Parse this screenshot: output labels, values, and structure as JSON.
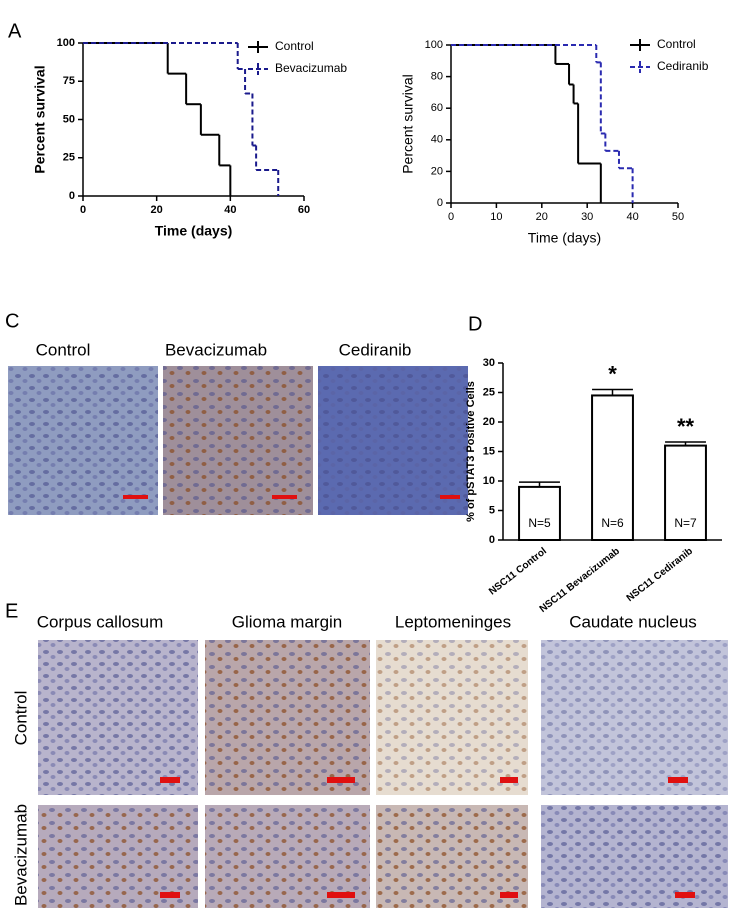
{
  "panel_labels": {
    "a": "A",
    "c": "C",
    "d": "D",
    "e": "E"
  },
  "chart_data": [
    {
      "type": "survival",
      "xlabel": "Time (days)",
      "ylabel": "Percent survival",
      "xlim": [
        0,
        60
      ],
      "xticks": [
        0,
        20,
        40,
        60
      ],
      "ylim": [
        0,
        100
      ],
      "yticks": [
        0,
        25,
        50,
        75,
        100
      ],
      "legend": "upper right",
      "series": [
        {
          "name": "Control",
          "color": "#000000",
          "dash": false,
          "x": [
            0,
            23,
            28,
            32,
            37,
            40
          ],
          "values": [
            100,
            80,
            60,
            40,
            20,
            0
          ]
        },
        {
          "name": "Bevacizumab",
          "color": "#1a1a8c",
          "dash": true,
          "x": [
            0,
            42,
            44,
            46,
            47,
            53
          ],
          "values": [
            100,
            83,
            67,
            33,
            17,
            0
          ]
        }
      ]
    },
    {
      "type": "survival",
      "xlabel": "Time (days)",
      "ylabel": "Percent survival",
      "xlim": [
        0,
        50
      ],
      "xticks": [
        0,
        10,
        20,
        30,
        40,
        50
      ],
      "ylim": [
        0,
        100
      ],
      "yticks": [
        0,
        20,
        40,
        60,
        80,
        100
      ],
      "legend": "upper right",
      "series": [
        {
          "name": "Control",
          "color": "#000000",
          "dash": false,
          "x": [
            0,
            23,
            26,
            27,
            28,
            33
          ],
          "values": [
            100,
            88,
            75,
            63,
            25,
            0
          ]
        },
        {
          "name": "Cediranib",
          "color": "#2a2ab0",
          "dash": true,
          "x": [
            0,
            32,
            33,
            34,
            37,
            40
          ],
          "values": [
            100,
            89,
            44,
            33,
            22,
            0
          ]
        }
      ]
    },
    {
      "type": "bar",
      "ylabel": "% of pSTAT3 Positive Cells",
      "categories": [
        "NSC11 Control",
        "NSC11 Bevacizumab",
        "NSC11 Cediranib"
      ],
      "values": [
        9,
        24.5,
        16
      ],
      "errors": [
        0.8,
        1.0,
        0.6
      ],
      "color": "#ffffff",
      "bar_labels": [
        "N=5",
        "N=6",
        "N=7"
      ],
      "significance": [
        null,
        "*",
        "**"
      ],
      "ylim": [
        0,
        30
      ],
      "yticks": [
        0,
        5,
        10,
        15,
        20,
        25,
        30
      ]
    }
  ],
  "panel_c": {
    "captions": [
      "Control",
      "Bevacizumab",
      "Cediranib"
    ]
  },
  "panel_e": {
    "columns": [
      "Corpus callosum",
      "Glioma margin",
      "Leptomeninges",
      "Caudate nucleus"
    ],
    "rows": [
      "Control",
      "Bevacizumab"
    ]
  }
}
